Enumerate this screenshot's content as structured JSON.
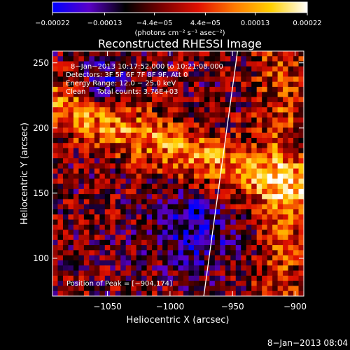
{
  "chart_data": {
    "type": "heatmap",
    "title": "Reconstructed RHESSI Image",
    "xlabel": "Heliocentric X (arcsec)",
    "ylabel": "Heliocentric Y (arcsec)",
    "xlim": [
      -1094,
      -893
    ],
    "ylim": [
      71,
      259
    ],
    "x_ticks": [
      -1050,
      -1000,
      -950,
      -900
    ],
    "x_tick_labels": [
      "−1050",
      "−1000",
      "−950",
      "−900"
    ],
    "y_ticks": [
      100,
      150,
      200,
      250
    ],
    "y_tick_labels": [
      "100",
      "150",
      "200",
      "250"
    ],
    "grid": false,
    "colorbar": {
      "orientation": "horizontal",
      "placement": "top",
      "range": [
        -0.00022,
        0.00022
      ],
      "ticks": [
        -0.00022,
        -0.00013,
        -4.4e-05,
        4.4e-05,
        0.00013,
        0.00022
      ],
      "tick_labels": [
        "−0.00022",
        "−0.00013",
        "−4.4e−05",
        "4.4e−05",
        "0.00013",
        "0.00022"
      ],
      "unit": "(photons cm⁻² s⁻¹ asec⁻²)",
      "colormap": [
        "#0000ff",
        "#5a00c8",
        "#000000",
        "#7a0000",
        "#e01000",
        "#ff7a00",
        "#ffd000",
        "#ffffff"
      ]
    },
    "annotations": [
      "8−Jan−2013 10:17:52.000 to 10:21:08.000",
      "Detectors: 3F 5F 6F 7F 8F 9F, Att 0",
      "Energy Range: 12.0 − 25.0 keV",
      "Clean     Total counts: 3.76E+03"
    ],
    "peak_label": "Position of Peak = [−904,174]",
    "peak_position": [
      -904,
      174
    ],
    "limb_line": {
      "x": [
        -973,
        -946
      ],
      "y": [
        71,
        259
      ],
      "color": "#ffffff"
    },
    "timestamp": "8−Jan−2013 08:04"
  }
}
